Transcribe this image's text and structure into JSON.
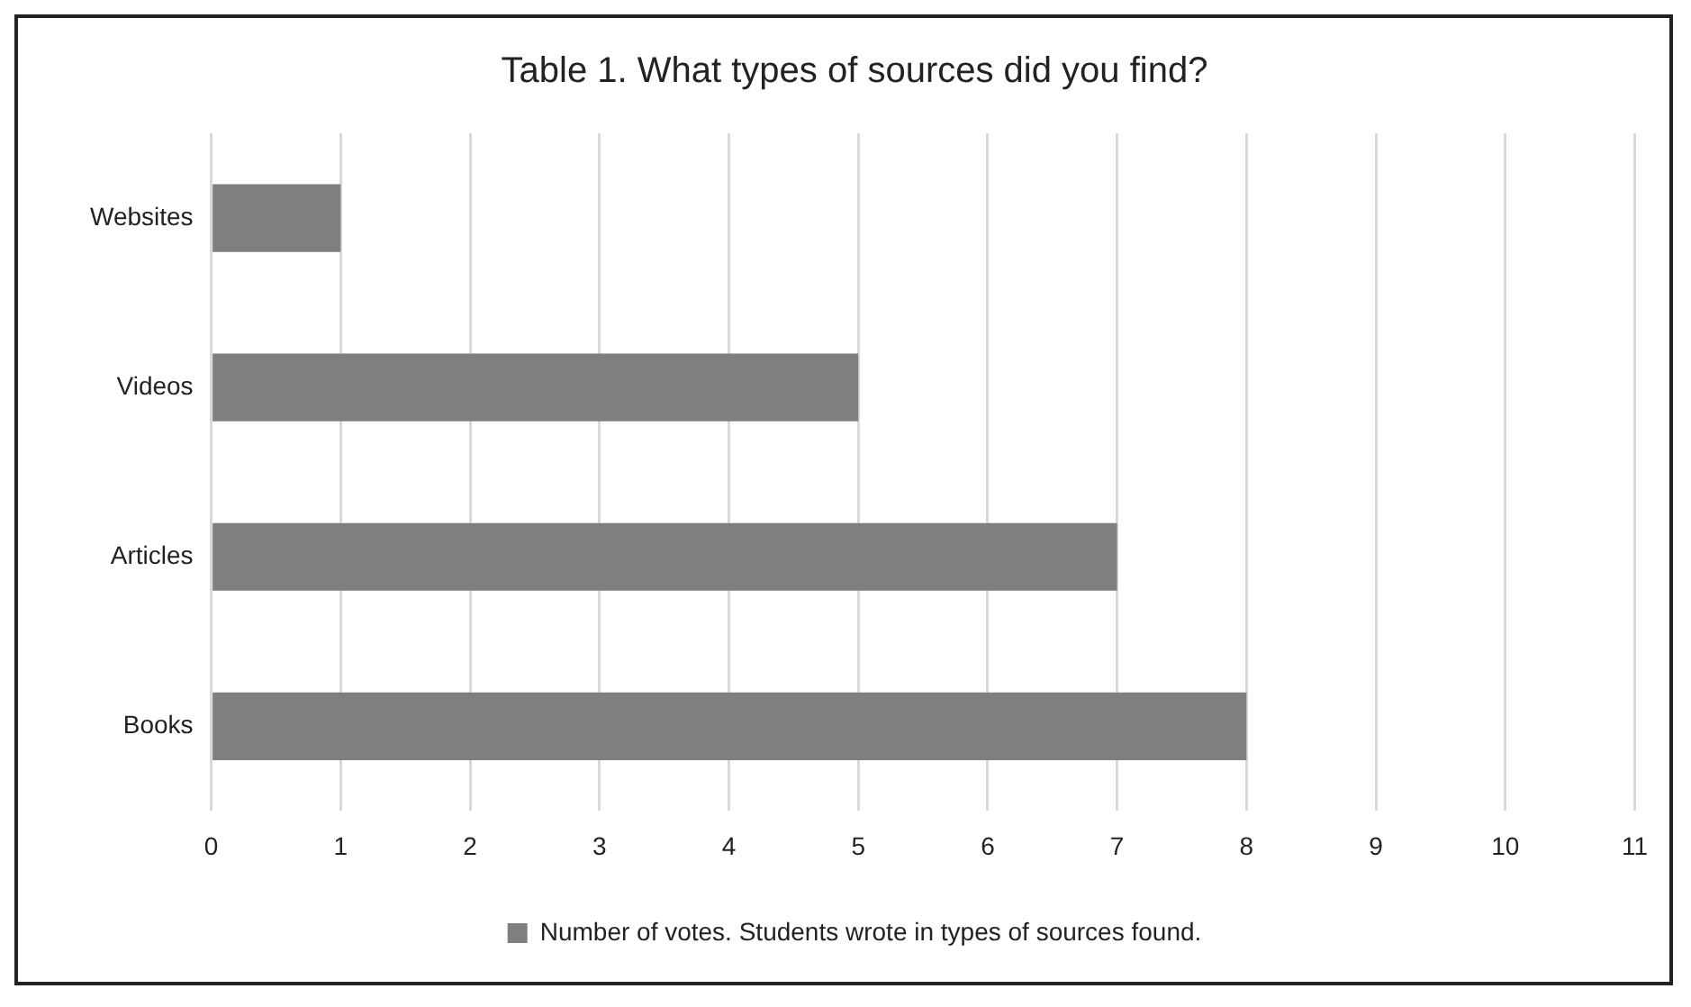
{
  "chart_data": {
    "type": "bar",
    "orientation": "horizontal",
    "title": "Table 1. What types of sources did you find?",
    "categories": [
      "Websites",
      "Videos",
      "Articles",
      "Books"
    ],
    "series": [
      {
        "name": "Number of votes. Students wrote in types of sources found.",
        "color": "#7f7f82",
        "values": [
          1,
          5,
          7,
          8
        ]
      }
    ],
    "xlim": [
      0,
      11
    ],
    "xticks": [
      0,
      1,
      2,
      3,
      4,
      5,
      6,
      7,
      8,
      9,
      10,
      11
    ],
    "grid": "x",
    "legend": "bottom"
  }
}
